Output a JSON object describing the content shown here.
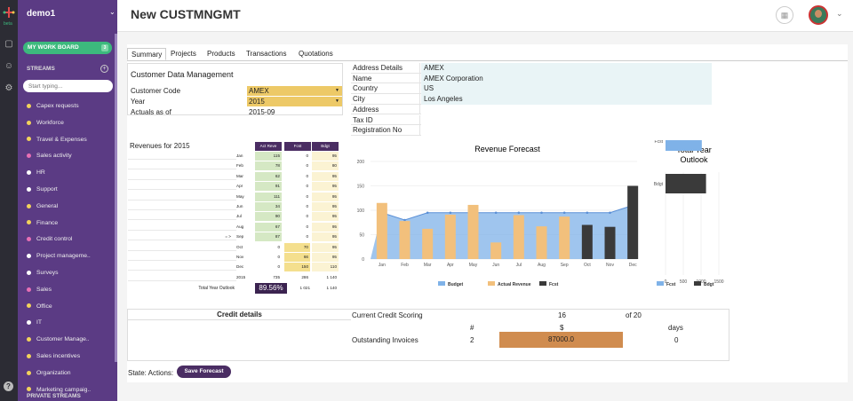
{
  "app": {
    "logo_label": "beta",
    "workspace": "demo1"
  },
  "sidebar": {
    "work_board": "MY WORK BOARD",
    "work_board_count": "3",
    "streams_heading": "STREAMS",
    "search_placeholder": "Start typing...",
    "private_heading": "PRIVATE STREAMS",
    "streams": [
      {
        "label": "Capex requests",
        "color": "#f2d35b"
      },
      {
        "label": "Workforce",
        "color": "#f2d35b"
      },
      {
        "label": "Travel & Expenses",
        "color": "#f2d35b"
      },
      {
        "label": "Sales activity",
        "color": "#e86fb5"
      },
      {
        "label": "HR",
        "color": "#ffffff"
      },
      {
        "label": "Support",
        "color": "#ffffff"
      },
      {
        "label": "General",
        "color": "#f2d35b"
      },
      {
        "label": "Finance",
        "color": "#f2d35b"
      },
      {
        "label": "Credit control",
        "color": "#e86fb5"
      },
      {
        "label": "Project manageme..",
        "color": "#ffffff"
      },
      {
        "label": "Surveys",
        "color": "#ffffff"
      },
      {
        "label": "Sales",
        "color": "#e86fb5"
      },
      {
        "label": "Office",
        "color": "#f2d35b"
      },
      {
        "label": "IT",
        "color": "#ffffff"
      },
      {
        "label": "Customer Manage..",
        "color": "#f2d35b"
      },
      {
        "label": "Sales incentives",
        "color": "#f2d35b"
      },
      {
        "label": "Organization",
        "color": "#f2d35b"
      },
      {
        "label": "Marketing campaig..",
        "color": "#f2d35b"
      }
    ]
  },
  "header": {
    "title": "New CUSTMNGMT"
  },
  "tabs": [
    "Summary",
    "Projects",
    "Products",
    "Transactions",
    "Quotations"
  ],
  "cdm": {
    "title": "Customer Data Management",
    "rows": [
      {
        "label": "Customer Code",
        "value": "AMEX"
      },
      {
        "label": "Year",
        "value": "2015"
      },
      {
        "label": "Actuals as of",
        "value": "2015-09"
      }
    ]
  },
  "address": [
    {
      "label": "Address Details",
      "value": "AMEX"
    },
    {
      "label": "Name",
      "value": "AMEX Corporation"
    },
    {
      "label": "Country",
      "value": "US"
    },
    {
      "label": "City",
      "value": "Los Angeles"
    },
    {
      "label": "Address",
      "value": ""
    },
    {
      "label": "Tax ID",
      "value": ""
    },
    {
      "label": "Registration No",
      "value": ""
    }
  ],
  "revenues": {
    "title": "Revenues for 2015",
    "headers": [
      "Act Reve",
      "Fcst",
      "Bdgt"
    ],
    "marker": "= >",
    "rows": [
      {
        "m": "Jan",
        "a": "115",
        "f": "0",
        "b": "95"
      },
      {
        "m": "Feb",
        "a": "78",
        "f": "0",
        "b": "80"
      },
      {
        "m": "Mar",
        "a": "62",
        "f": "0",
        "b": "95"
      },
      {
        "m": "Apr",
        "a": "91",
        "f": "0",
        "b": "95"
      },
      {
        "m": "May",
        "a": "111",
        "f": "0",
        "b": "95"
      },
      {
        "m": "Jun",
        "a": "34",
        "f": "0",
        "b": "95"
      },
      {
        "m": "Jul",
        "a": "90",
        "f": "0",
        "b": "95"
      },
      {
        "m": "Aug",
        "a": "67",
        "f": "0",
        "b": "95"
      },
      {
        "m": "Sep",
        "a": "87",
        "f": "0",
        "b": "95"
      },
      {
        "m": "Oct",
        "a": "0",
        "f": "70",
        "b": "95"
      },
      {
        "m": "Nov",
        "a": "0",
        "f": "66",
        "b": "95"
      },
      {
        "m": "Dec",
        "a": "0",
        "f": "150",
        "b": "110"
      },
      {
        "m": "2015",
        "a": "735",
        "f": "286",
        "b": "1 140"
      }
    ],
    "outlook_label": "Total Year Outlook",
    "outlook_pct": "89.56%",
    "outlook_fcst": "1 021",
    "outlook_bdgt": "1 140"
  },
  "chart_data": [
    {
      "type": "bar",
      "title": "Revenue Forecast",
      "categories": [
        "Jan",
        "Feb",
        "Mar",
        "Apr",
        "May",
        "Jun",
        "Jul",
        "Aug",
        "Sep",
        "Oct",
        "Nov",
        "Dec"
      ],
      "ylim": [
        0,
        200
      ],
      "yticks": [
        0,
        50,
        100,
        150,
        200
      ],
      "series": [
        {
          "name": "Budget",
          "kind": "area",
          "color": "#7fb2e8",
          "values": [
            95,
            80,
            95,
            95,
            95,
            95,
            95,
            95,
            95,
            95,
            95,
            110
          ]
        },
        {
          "name": "Actual Revenue",
          "kind": "bar",
          "color": "#f2c07c",
          "values": [
            115,
            78,
            62,
            91,
            111,
            34,
            90,
            67,
            87,
            0,
            0,
            0
          ]
        },
        {
          "name": "Fcst",
          "kind": "bar",
          "color": "#3a3a3a",
          "values": [
            0,
            0,
            0,
            0,
            0,
            0,
            0,
            0,
            0,
            70,
            66,
            150
          ]
        }
      ]
    },
    {
      "type": "bar",
      "orientation": "horizontal",
      "title": "Total Year Outlook",
      "categories": [
        "Fcst",
        "Bdgt"
      ],
      "values": [
        1021,
        1140
      ],
      "colors": [
        "#7fb2e8",
        "#3a3a3a"
      ],
      "xlim": [
        0,
        1500
      ],
      "xticks": [
        "0",
        "500",
        "1000",
        "1500"
      ],
      "legend": [
        {
          "name": "Fcst",
          "color": "#7fb2e8"
        },
        {
          "name": "Bdgt",
          "color": "#3a3a3a"
        }
      ]
    }
  ],
  "credit": {
    "title": "Credit details",
    "scoring_label": "Current Credit Scoring",
    "score": "16",
    "of": "of 20",
    "col_num": "#",
    "col_money": "$",
    "col_days": "days",
    "invoices_label": "Outstanding Invoices",
    "inv_count": "2",
    "inv_amount": "87000.0",
    "inv_days": "0"
  },
  "footer": {
    "state_label": "State: Actions:",
    "save_button": "Save Forecast"
  }
}
